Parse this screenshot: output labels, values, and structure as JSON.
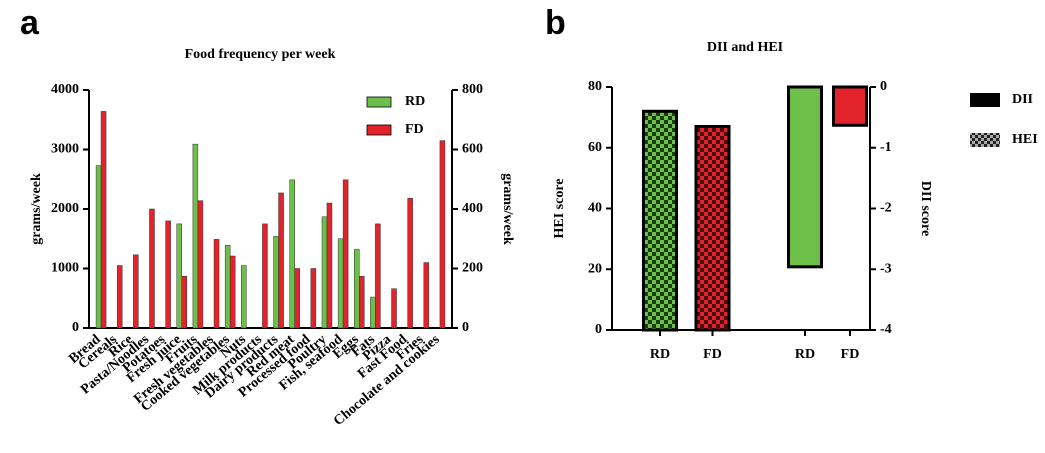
{
  "panel_labels": [
    "a",
    "b"
  ],
  "chart_data": [
    {
      "type": "bar",
      "title": "Food frequency per week",
      "ylabel": "grams/week",
      "y2label": "grams/week",
      "categories": [
        "Bread",
        "Cereals",
        "Rice",
        "Pasta/Noodles",
        "Potatoes",
        "Fresh juice",
        "Fruits",
        "Fresh vegetables",
        "Cooked vegetables",
        "Nuts",
        "Milk products",
        "Dairy products",
        "Red meat",
        "Processed food",
        "Poultry",
        "Fish, seafood",
        "Eggs",
        "Fats",
        "Pizza",
        "Fast Food",
        "Fries",
        "Chocolate and cookies"
      ],
      "series": [
        {
          "name": "RD",
          "color": "#6cc04a",
          "values": [
            2730,
            0,
            0,
            0,
            0,
            1750,
            3090,
            0,
            1390,
            1050,
            0,
            1540,
            2490,
            0,
            1870,
            1500,
            1320,
            520,
            0,
            0,
            0,
            0
          ]
        },
        {
          "name": "FD",
          "color": "#e3232b",
          "values": [
            3640,
            1050,
            1230,
            2000,
            1800,
            870,
            2140,
            1490,
            1210,
            0,
            1750,
            2270,
            1000,
            1000,
            2100,
            2490,
            870,
            1750,
            660,
            2180,
            1100,
            3150
          ]
        }
      ],
      "ylim": [
        0,
        4000
      ],
      "yticks": [
        0,
        1000,
        2000,
        3000,
        4000
      ],
      "y2lim": [
        0,
        800
      ],
      "y2ticks": [
        0,
        200,
        400,
        600,
        800
      ],
      "legend": "upper right"
    },
    {
      "type": "bar",
      "title": "DII and HEI",
      "ylabel": "HEI score",
      "y2label": "DII score",
      "categories": [
        "RD",
        "FD",
        "RD",
        "FD"
      ],
      "bar_colors": [
        "#6cc04a",
        "#e3232b",
        "#6cc04a",
        "#e3232b"
      ],
      "series": [
        {
          "name": "DII",
          "color": "#000000",
          "axis": "y2",
          "values": [
            null,
            null,
            -2.96,
            -0.63
          ]
        },
        {
          "name": "HEI",
          "color": "#000000",
          "pattern": "checker",
          "values": [
            72,
            67,
            null,
            null
          ]
        }
      ],
      "ylim": [
        0,
        80
      ],
      "yticks": [
        0,
        20,
        40,
        60,
        80
      ],
      "y2lim": [
        -4,
        0
      ],
      "y2ticks": [
        0,
        -1,
        -2,
        -3,
        -4
      ],
      "legend": "right outside"
    }
  ]
}
